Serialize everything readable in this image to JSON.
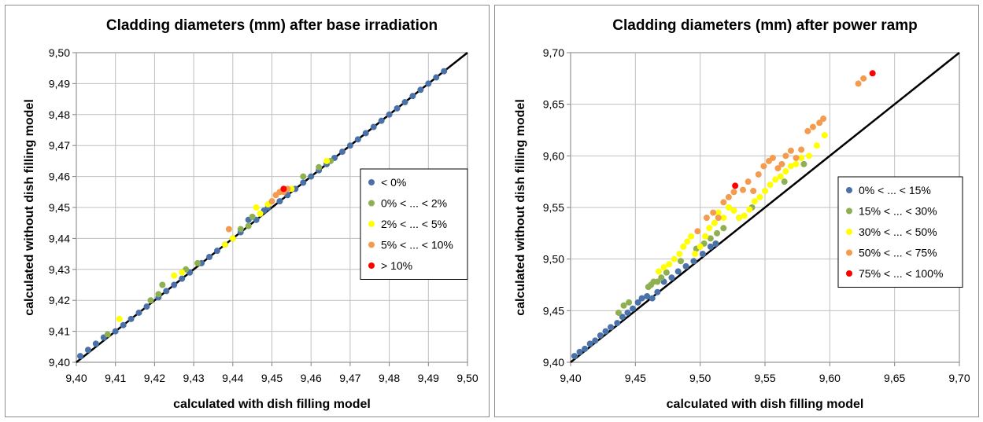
{
  "chart_data": [
    {
      "type": "scatter",
      "title": "Cladding diameters (mm) after base irradiation",
      "xlabel": "calculated with dish filling model",
      "ylabel": "calculated without dish filling model",
      "xlim": [
        9.4,
        9.5
      ],
      "ylim": [
        9.4,
        9.5
      ],
      "xticks": [
        "9,40",
        "9,41",
        "9,42",
        "9,43",
        "9,44",
        "9,45",
        "9,46",
        "9,47",
        "9,48",
        "9,49",
        "9,50"
      ],
      "yticks": [
        "9,40",
        "9,41",
        "9,42",
        "9,43",
        "9,44",
        "9,45",
        "9,46",
        "9,47",
        "9,48",
        "9,49",
        "9,50"
      ],
      "grid": true,
      "legend_position": "right-middle",
      "reference_line": {
        "label": "",
        "from": [
          9.4,
          9.4
        ],
        "to": [
          9.5,
          9.5
        ],
        "color": "#000000"
      },
      "series": [
        {
          "name": "< 0%",
          "color": "#4a72a8",
          "points": [
            [
              9.401,
              9.402
            ],
            [
              9.403,
              9.404
            ],
            [
              9.405,
              9.406
            ],
            [
              9.407,
              9.408
            ],
            [
              9.41,
              9.41
            ],
            [
              9.412,
              9.412
            ],
            [
              9.414,
              9.414
            ],
            [
              9.416,
              9.416
            ],
            [
              9.418,
              9.418
            ],
            [
              9.421,
              9.421
            ],
            [
              9.423,
              9.423
            ],
            [
              9.425,
              9.425
            ],
            [
              9.427,
              9.427
            ],
            [
              9.429,
              9.429
            ],
            [
              9.432,
              9.432
            ],
            [
              9.434,
              9.434
            ],
            [
              9.436,
              9.436
            ],
            [
              9.438,
              9.438
            ],
            [
              9.44,
              9.44
            ],
            [
              9.442,
              9.442
            ],
            [
              9.444,
              9.446
            ],
            [
              9.446,
              9.446
            ],
            [
              9.448,
              9.449
            ],
            [
              9.449,
              9.45
            ],
            [
              9.452,
              9.452
            ],
            [
              9.454,
              9.454
            ],
            [
              9.456,
              9.456
            ],
            [
              9.458,
              9.458
            ],
            [
              9.46,
              9.46
            ],
            [
              9.462,
              9.462
            ],
            [
              9.464,
              9.464
            ],
            [
              9.466,
              9.466
            ],
            [
              9.468,
              9.468
            ],
            [
              9.47,
              9.47
            ],
            [
              9.472,
              9.472
            ],
            [
              9.474,
              9.474
            ],
            [
              9.476,
              9.476
            ],
            [
              9.478,
              9.478
            ],
            [
              9.48,
              9.48
            ],
            [
              9.482,
              9.482
            ],
            [
              9.484,
              9.484
            ],
            [
              9.486,
              9.486
            ],
            [
              9.488,
              9.488
            ],
            [
              9.49,
              9.49
            ],
            [
              9.492,
              9.492
            ],
            [
              9.494,
              9.494
            ]
          ]
        },
        {
          "name": "0% < ... < 2%",
          "color": "#8fb052",
          "points": [
            [
              9.408,
              9.409
            ],
            [
              9.419,
              9.42
            ],
            [
              9.421,
              9.422
            ],
            [
              9.422,
              9.425
            ],
            [
              9.428,
              9.43
            ],
            [
              9.431,
              9.432
            ],
            [
              9.442,
              9.443
            ],
            [
              9.444,
              9.444
            ],
            [
              9.445,
              9.447
            ],
            [
              9.458,
              9.46
            ],
            [
              9.462,
              9.463
            ],
            [
              9.465,
              9.465
            ]
          ]
        },
        {
          "name": "2% < ... < 5%",
          "color": "#ffff00",
          "points": [
            [
              9.411,
              9.414
            ],
            [
              9.425,
              9.428
            ],
            [
              9.427,
              9.429
            ],
            [
              9.438,
              9.438
            ],
            [
              9.44,
              9.44
            ],
            [
              9.446,
              9.45
            ],
            [
              9.447,
              9.448
            ],
            [
              9.449,
              9.451
            ],
            [
              9.455,
              9.456
            ],
            [
              9.464,
              9.465
            ]
          ]
        },
        {
          "name": "5% < ... < 10%",
          "color": "#f39c4f",
          "points": [
            [
              9.439,
              9.443
            ],
            [
              9.45,
              9.452
            ],
            [
              9.451,
              9.454
            ],
            [
              9.452,
              9.455
            ],
            [
              9.453,
              9.455
            ],
            [
              9.454,
              9.456
            ]
          ]
        },
        {
          "name": "> 10%",
          "color": "#ff0000",
          "points": [
            [
              9.453,
              9.456
            ]
          ]
        }
      ]
    },
    {
      "type": "scatter",
      "title": "Cladding diameters (mm) after power ramp",
      "xlabel": "calculated with dish filling model",
      "ylabel": "calculated without dish filling model",
      "xlim": [
        9.4,
        9.7
      ],
      "ylim": [
        9.4,
        9.7
      ],
      "xticks": [
        "9,40",
        "9,45",
        "9,50",
        "9,55",
        "9,60",
        "9,65",
        "9,70"
      ],
      "yticks": [
        "9,40",
        "9,45",
        "9,50",
        "9,55",
        "9,60",
        "9,65",
        "9,70"
      ],
      "grid": true,
      "legend_position": "right-middle",
      "reference_line": {
        "label": "",
        "from": [
          9.4,
          9.4
        ],
        "to": [
          9.7,
          9.7
        ],
        "color": "#000000"
      },
      "series": [
        {
          "name": "0% < ... < 15%",
          "color": "#4a72a8",
          "points": [
            [
              9.403,
              9.406
            ],
            [
              9.407,
              9.41
            ],
            [
              9.411,
              9.413
            ],
            [
              9.415,
              9.418
            ],
            [
              9.419,
              9.421
            ],
            [
              9.423,
              9.426
            ],
            [
              9.427,
              9.43
            ],
            [
              9.431,
              9.434
            ],
            [
              9.436,
              9.438
            ],
            [
              9.44,
              9.444
            ],
            [
              9.444,
              9.448
            ],
            [
              9.448,
              9.452
            ],
            [
              9.452,
              9.458
            ],
            [
              9.455,
              9.462
            ],
            [
              9.459,
              9.464
            ],
            [
              9.463,
              9.462
            ],
            [
              9.467,
              9.468
            ],
            [
              9.472,
              9.478
            ],
            [
              9.478,
              9.482
            ],
            [
              9.483,
              9.488
            ],
            [
              9.489,
              9.493
            ],
            [
              9.495,
              9.498
            ],
            [
              9.502,
              9.505
            ],
            [
              9.508,
              9.512
            ],
            [
              9.512,
              9.515
            ]
          ]
        },
        {
          "name": "15% < ... < 30%",
          "color": "#8fb052",
          "points": [
            [
              9.437,
              9.448
            ],
            [
              9.441,
              9.455
            ],
            [
              9.445,
              9.458
            ],
            [
              9.46,
              9.473
            ],
            [
              9.462,
              9.475
            ],
            [
              9.464,
              9.478
            ],
            [
              9.467,
              9.478
            ],
            [
              9.47,
              9.482
            ],
            [
              9.474,
              9.487
            ],
            [
              9.485,
              9.498
            ],
            [
              9.497,
              9.51
            ],
            [
              9.503,
              9.515
            ],
            [
              9.508,
              9.52
            ],
            [
              9.513,
              9.525
            ],
            [
              9.518,
              9.53
            ],
            [
              9.53,
              9.54
            ],
            [
              9.54,
              9.55
            ],
            [
              9.565,
              9.575
            ],
            [
              9.58,
              9.592
            ]
          ]
        },
        {
          "name": "30% < ... < 50%",
          "color": "#ffff00",
          "points": [
            [
              9.468,
              9.488
            ],
            [
              9.472,
              9.492
            ],
            [
              9.476,
              9.495
            ],
            [
              9.48,
              9.5
            ],
            [
              9.484,
              9.505
            ],
            [
              9.487,
              9.512
            ],
            [
              9.49,
              9.517
            ],
            [
              9.493,
              9.522
            ],
            [
              9.496,
              9.505
            ],
            [
              9.5,
              9.512
            ],
            [
              9.504,
              9.522
            ],
            [
              9.507,
              9.53
            ],
            [
              9.511,
              9.535
            ],
            [
              9.514,
              9.545
            ],
            [
              9.518,
              9.54
            ],
            [
              9.522,
              9.55
            ],
            [
              9.526,
              9.547
            ],
            [
              9.53,
              9.54
            ],
            [
              9.534,
              9.542
            ],
            [
              9.538,
              9.548
            ],
            [
              9.542,
              9.556
            ],
            [
              9.546,
              9.56
            ],
            [
              9.55,
              9.566
            ],
            [
              9.554,
              9.572
            ],
            [
              9.558,
              9.577
            ],
            [
              9.562,
              9.58
            ],
            [
              9.566,
              9.585
            ],
            [
              9.57,
              9.59
            ],
            [
              9.574,
              9.592
            ],
            [
              9.578,
              9.598
            ],
            [
              9.584,
              9.6
            ],
            [
              9.59,
              9.61
            ],
            [
              9.596,
              9.62
            ]
          ]
        },
        {
          "name": "50% < ... < 75%",
          "color": "#f39c4f",
          "points": [
            [
              9.498,
              9.527
            ],
            [
              9.505,
              9.54
            ],
            [
              9.51,
              9.545
            ],
            [
              9.514,
              9.54
            ],
            [
              9.518,
              9.555
            ],
            [
              9.522,
              9.56
            ],
            [
              9.526,
              9.565
            ],
            [
              9.533,
              9.567
            ],
            [
              9.537,
              9.575
            ],
            [
              9.541,
              9.566
            ],
            [
              9.545,
              9.582
            ],
            [
              9.549,
              9.59
            ],
            [
              9.553,
              9.595
            ],
            [
              9.556,
              9.598
            ],
            [
              9.56,
              9.588
            ],
            [
              9.563,
              9.592
            ],
            [
              9.566,
              9.6
            ],
            [
              9.57,
              9.605
            ],
            [
              9.574,
              9.598
            ],
            [
              9.578,
              9.606
            ],
            [
              9.583,
              9.624
            ],
            [
              9.587,
              9.628
            ],
            [
              9.592,
              9.632
            ],
            [
              9.595,
              9.636
            ],
            [
              9.622,
              9.67
            ],
            [
              9.626,
              9.675
            ]
          ]
        },
        {
          "name": "75% < ... < 100%",
          "color": "#ff0000",
          "points": [
            [
              9.527,
              9.571
            ],
            [
              9.633,
              9.68
            ]
          ]
        }
      ]
    }
  ]
}
